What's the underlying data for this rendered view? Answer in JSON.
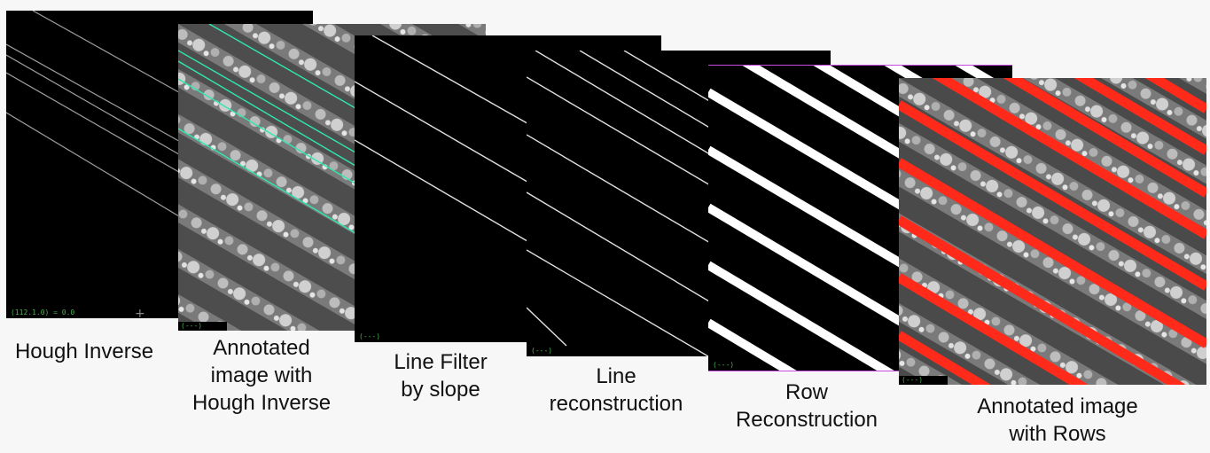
{
  "captions": {
    "p1": [
      "Hough Inverse"
    ],
    "p2": [
      "Annotated",
      "image with",
      "Hough Inverse"
    ],
    "p3": [
      "Line Filter",
      "by slope"
    ],
    "p4": [
      "Line",
      "reconstruction"
    ],
    "p5": [
      "Row",
      "Reconstruction"
    ],
    "p6": [
      "Annotated image",
      "with Rows"
    ]
  },
  "status": {
    "p1": "(112.1.0) = 0.0",
    "p2": "(---)",
    "p3": "(---)",
    "p4": "(---)",
    "p5": "(---)",
    "p6": "(---)"
  },
  "colors": {
    "background": "#f7f7f7",
    "hough_line": "#9e9e9e",
    "annotation_line": "#2ee8b0",
    "row_band": "#ff2a1a",
    "crop_texture": "#8a8a8a",
    "status_text": "#4caf50"
  }
}
